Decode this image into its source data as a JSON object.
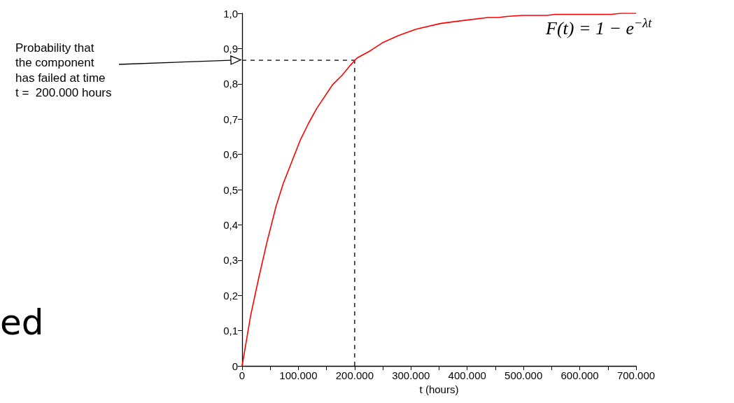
{
  "chart_data": {
    "type": "line",
    "xlabel": "t (hours)",
    "x": [
      0,
      15200,
      29200,
      44000,
      60200,
      73000,
      103000,
      118000,
      132500,
      161000,
      178000,
      192000,
      204000,
      228000,
      249000,
      278000,
      309000,
      352000,
      385000,
      437000,
      456000,
      470000,
      499000,
      542000,
      556000,
      656000,
      673000,
      700000
    ],
    "series": [
      {
        "color": "#ff0000",
        "values": [
          0,
          0.143,
          0.247,
          0.35,
          0.452,
          0.517,
          0.639,
          0.688,
          0.73,
          0.798,
          0.825,
          0.852,
          0.873,
          0.894,
          0.916,
          0.937,
          0.955,
          0.971,
          0.978,
          0.988,
          0.988,
          0.991,
          0.994,
          0.994,
          0.997,
          0.997,
          1.0,
          1.0
        ]
      }
    ],
    "xlim": [
      0,
      700000
    ],
    "xticks": [
      0,
      {
        "value": 50000,
        "label": null
      },
      {
        "value": 100000,
        "label": "100.000"
      },
      {
        "value": 150000,
        "label": null
      },
      {
        "value": 200000,
        "label": "200.000"
      },
      {
        "value": 250000,
        "label": null
      },
      {
        "value": 300000,
        "label": "300.000"
      },
      {
        "value": 350000,
        "label": null
      },
      {
        "value": 400000,
        "label": "400.000"
      },
      {
        "value": 450000,
        "label": null
      },
      {
        "value": 500000,
        "label": "500.000"
      },
      {
        "value": 550000,
        "label": null
      },
      {
        "value": 600000,
        "label": "600.000"
      },
      {
        "value": 650000,
        "label": null
      },
      {
        "value": 700000,
        "label": "700.000"
      }
    ],
    "ylim": [
      0,
      1
    ],
    "yticks": [
      0,
      {
        "value": 0.1,
        "label": "0,1"
      },
      {
        "value": 0.2,
        "label": "0,2"
      },
      {
        "value": 0.3,
        "label": "0,3"
      },
      {
        "value": 0.4,
        "label": "0,4"
      },
      {
        "value": 0.5,
        "label": "0,5"
      },
      {
        "value": 0.6,
        "label": "0,6"
      },
      {
        "value": 0.7,
        "label": "0,7"
      },
      {
        "value": 0.8,
        "label": "0,8"
      },
      {
        "value": 0.9,
        "label": "0,9"
      },
      {
        "value": 1,
        "label": "1,0"
      }
    ],
    "ref_lines": [
      {
        "axis": "y",
        "value": 0.867,
        "color": "#000000",
        "line_style": "dashed"
      },
      {
        "axis": "x",
        "value": 200000,
        "color": "#000000",
        "line_style": "dashed"
      }
    ],
    "annotations": [
      "Probability that\nthe component\nhas failed at time\nt =  200.000 hours",
      "F(t) = 1 − e$^{−λt}$",
      "ed"
    ],
    "grid": false,
    "marker": "none",
    "line_style": "solid"
  }
}
